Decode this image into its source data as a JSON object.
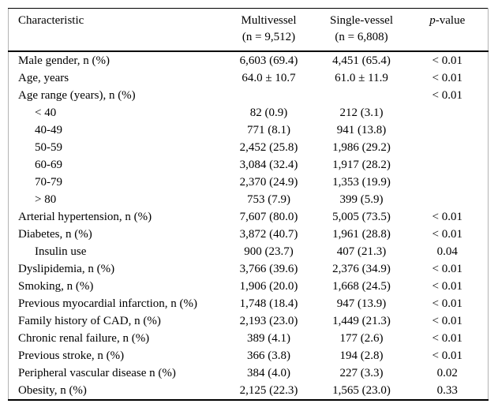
{
  "table": {
    "header": {
      "characteristic": "Characteristic",
      "multivessel_line1": "Multivessel",
      "multivessel_line2": "(n = 9,512)",
      "single_vessel_line1": "Single-vessel",
      "single_vessel_line2": "(n = 6,808)",
      "p_value_italic": "p",
      "p_value_rest": "-value"
    },
    "rows": [
      {
        "label": "Male gender, n (%)",
        "indent": false,
        "multivessel": "6,603 (69.4)",
        "single_vessel": "4,451 (65.4)",
        "p_value": "< 0.01"
      },
      {
        "label": "Age, years",
        "indent": false,
        "multivessel": "64.0 ± 10.7",
        "single_vessel": "61.0 ± 11.9",
        "p_value": "< 0.01"
      },
      {
        "label": "Age range (years), n (%)",
        "indent": false,
        "multivessel": "",
        "single_vessel": "",
        "p_value": "< 0.01"
      },
      {
        "label": "< 40",
        "indent": true,
        "multivessel": "82 (0.9)",
        "single_vessel": "212 (3.1)",
        "p_value": ""
      },
      {
        "label": "40-49",
        "indent": true,
        "multivessel": "771 (8.1)",
        "single_vessel": "941 (13.8)",
        "p_value": ""
      },
      {
        "label": "50-59",
        "indent": true,
        "multivessel": "2,452 (25.8)",
        "single_vessel": "1,986 (29.2)",
        "p_value": ""
      },
      {
        "label": "60-69",
        "indent": true,
        "multivessel": "3,084 (32.4)",
        "single_vessel": "1,917 (28.2)",
        "p_value": ""
      },
      {
        "label": "70-79",
        "indent": true,
        "multivessel": "2,370 (24.9)",
        "single_vessel": "1,353 (19.9)",
        "p_value": ""
      },
      {
        "label": "> 80",
        "indent": true,
        "multivessel": "753 (7.9)",
        "single_vessel": "399 (5.9)",
        "p_value": ""
      },
      {
        "label": "Arterial hypertension, n (%)",
        "indent": false,
        "multivessel": "7,607 (80.0)",
        "single_vessel": "5,005 (73.5)",
        "p_value": "< 0.01"
      },
      {
        "label": "Diabetes, n (%)",
        "indent": false,
        "multivessel": "3,872 (40.7)",
        "single_vessel": "1,961 (28.8)",
        "p_value": "< 0.01"
      },
      {
        "label": "Insulin use",
        "indent": true,
        "multivessel": "900 (23.7)",
        "single_vessel": "407 (21.3)",
        "p_value": "0.04"
      },
      {
        "label": "Dyslipidemia, n (%)",
        "indent": false,
        "multivessel": "3,766 (39.6)",
        "single_vessel": "2,376 (34.9)",
        "p_value": "< 0.01"
      },
      {
        "label": "Smoking, n (%)",
        "indent": false,
        "multivessel": "1,906 (20.0)",
        "single_vessel": "1,668 (24.5)",
        "p_value": "< 0.01"
      },
      {
        "label": "Previous myocardial infarction, n (%)",
        "indent": false,
        "multivessel": "1,748 (18.4)",
        "single_vessel": "947 (13.9)",
        "p_value": "< 0.01"
      },
      {
        "label": "Family history of CAD, n (%)",
        "indent": false,
        "multivessel": "2,193 (23.0)",
        "single_vessel": "1,449 (21.3)",
        "p_value": "< 0.01"
      },
      {
        "label": "Chronic renal failure, n (%)",
        "indent": false,
        "multivessel": "389 (4.1)",
        "single_vessel": "177 (2.6)",
        "p_value": "< 0.01"
      },
      {
        "label": "Previous stroke, n (%)",
        "indent": false,
        "multivessel": "366 (3.8)",
        "single_vessel": "194 (2.8)",
        "p_value": "< 0.01"
      },
      {
        "label": "Peripheral vascular disease n (%)",
        "indent": false,
        "multivessel": "384 (4.0)",
        "single_vessel": "227 (3.3)",
        "p_value": "0.02"
      },
      {
        "label": "Obesity, n (%)",
        "indent": false,
        "multivessel": "2,125 (22.3)",
        "single_vessel": "1,565 (23.0)",
        "p_value": "0.33"
      }
    ]
  }
}
